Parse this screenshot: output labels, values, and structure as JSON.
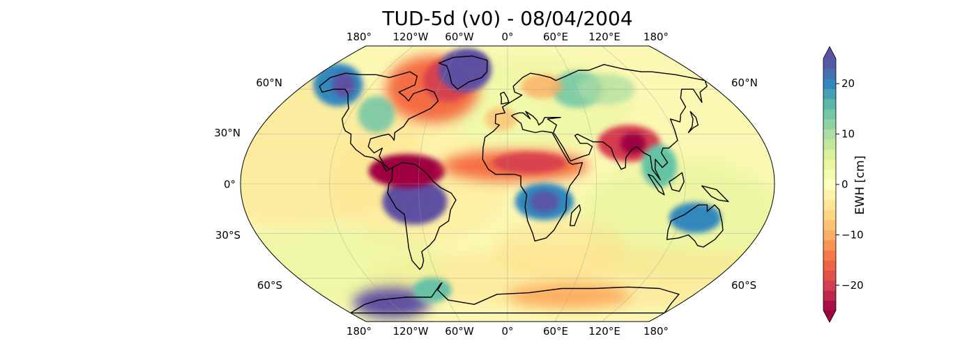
{
  "title": "TUD-5d (v0) - 08/04/2004",
  "lon_ticks": [
    "180°",
    "120°W",
    "60°W",
    "0°",
    "60°E",
    "120°E",
    "180°"
  ],
  "lat_ticks_left": [
    "60°N",
    "30°N",
    "0°",
    "30°S",
    "60°S"
  ],
  "lat_ticks_right": [
    "60°N",
    "60°S"
  ],
  "colorbar": {
    "label": "EWH [cm]",
    "min": -25,
    "max": 25,
    "ticks": [
      {
        "value": 20,
        "label": "20"
      },
      {
        "value": 10,
        "label": "10"
      },
      {
        "value": 0,
        "label": "0"
      },
      {
        "value": -10,
        "label": "−10"
      },
      {
        "value": -20,
        "label": "−20"
      }
    ],
    "colors": [
      "#9e0142",
      "#d53e4f",
      "#f46d43",
      "#fdae61",
      "#fee08b",
      "#ffffbf",
      "#e6f598",
      "#abdda4",
      "#66c2a5",
      "#3288bd",
      "#5e4fa2"
    ]
  },
  "map": {
    "projection": "Robinson",
    "background_color": "#fbf8b4",
    "anomalies": [
      {
        "region": "Amazon basin",
        "ewh": 24
      },
      {
        "region": "northern South America",
        "ewh": -25
      },
      {
        "region": "Greenland",
        "ewh": 25
      },
      {
        "region": "Alaska",
        "ewh": 22
      },
      {
        "region": "central Africa",
        "ewh": 14
      },
      {
        "region": "Sahel",
        "ewh": -12
      },
      {
        "region": "Ganges–Brahmaputra",
        "ewh": -24
      },
      {
        "region": "Hudson Bay / Labrador",
        "ewh": -10
      },
      {
        "region": "West Antarctica",
        "ewh": 24
      },
      {
        "region": "Indochina",
        "ewh": 14
      },
      {
        "region": "northern Australia",
        "ewh": 16
      }
    ]
  }
}
